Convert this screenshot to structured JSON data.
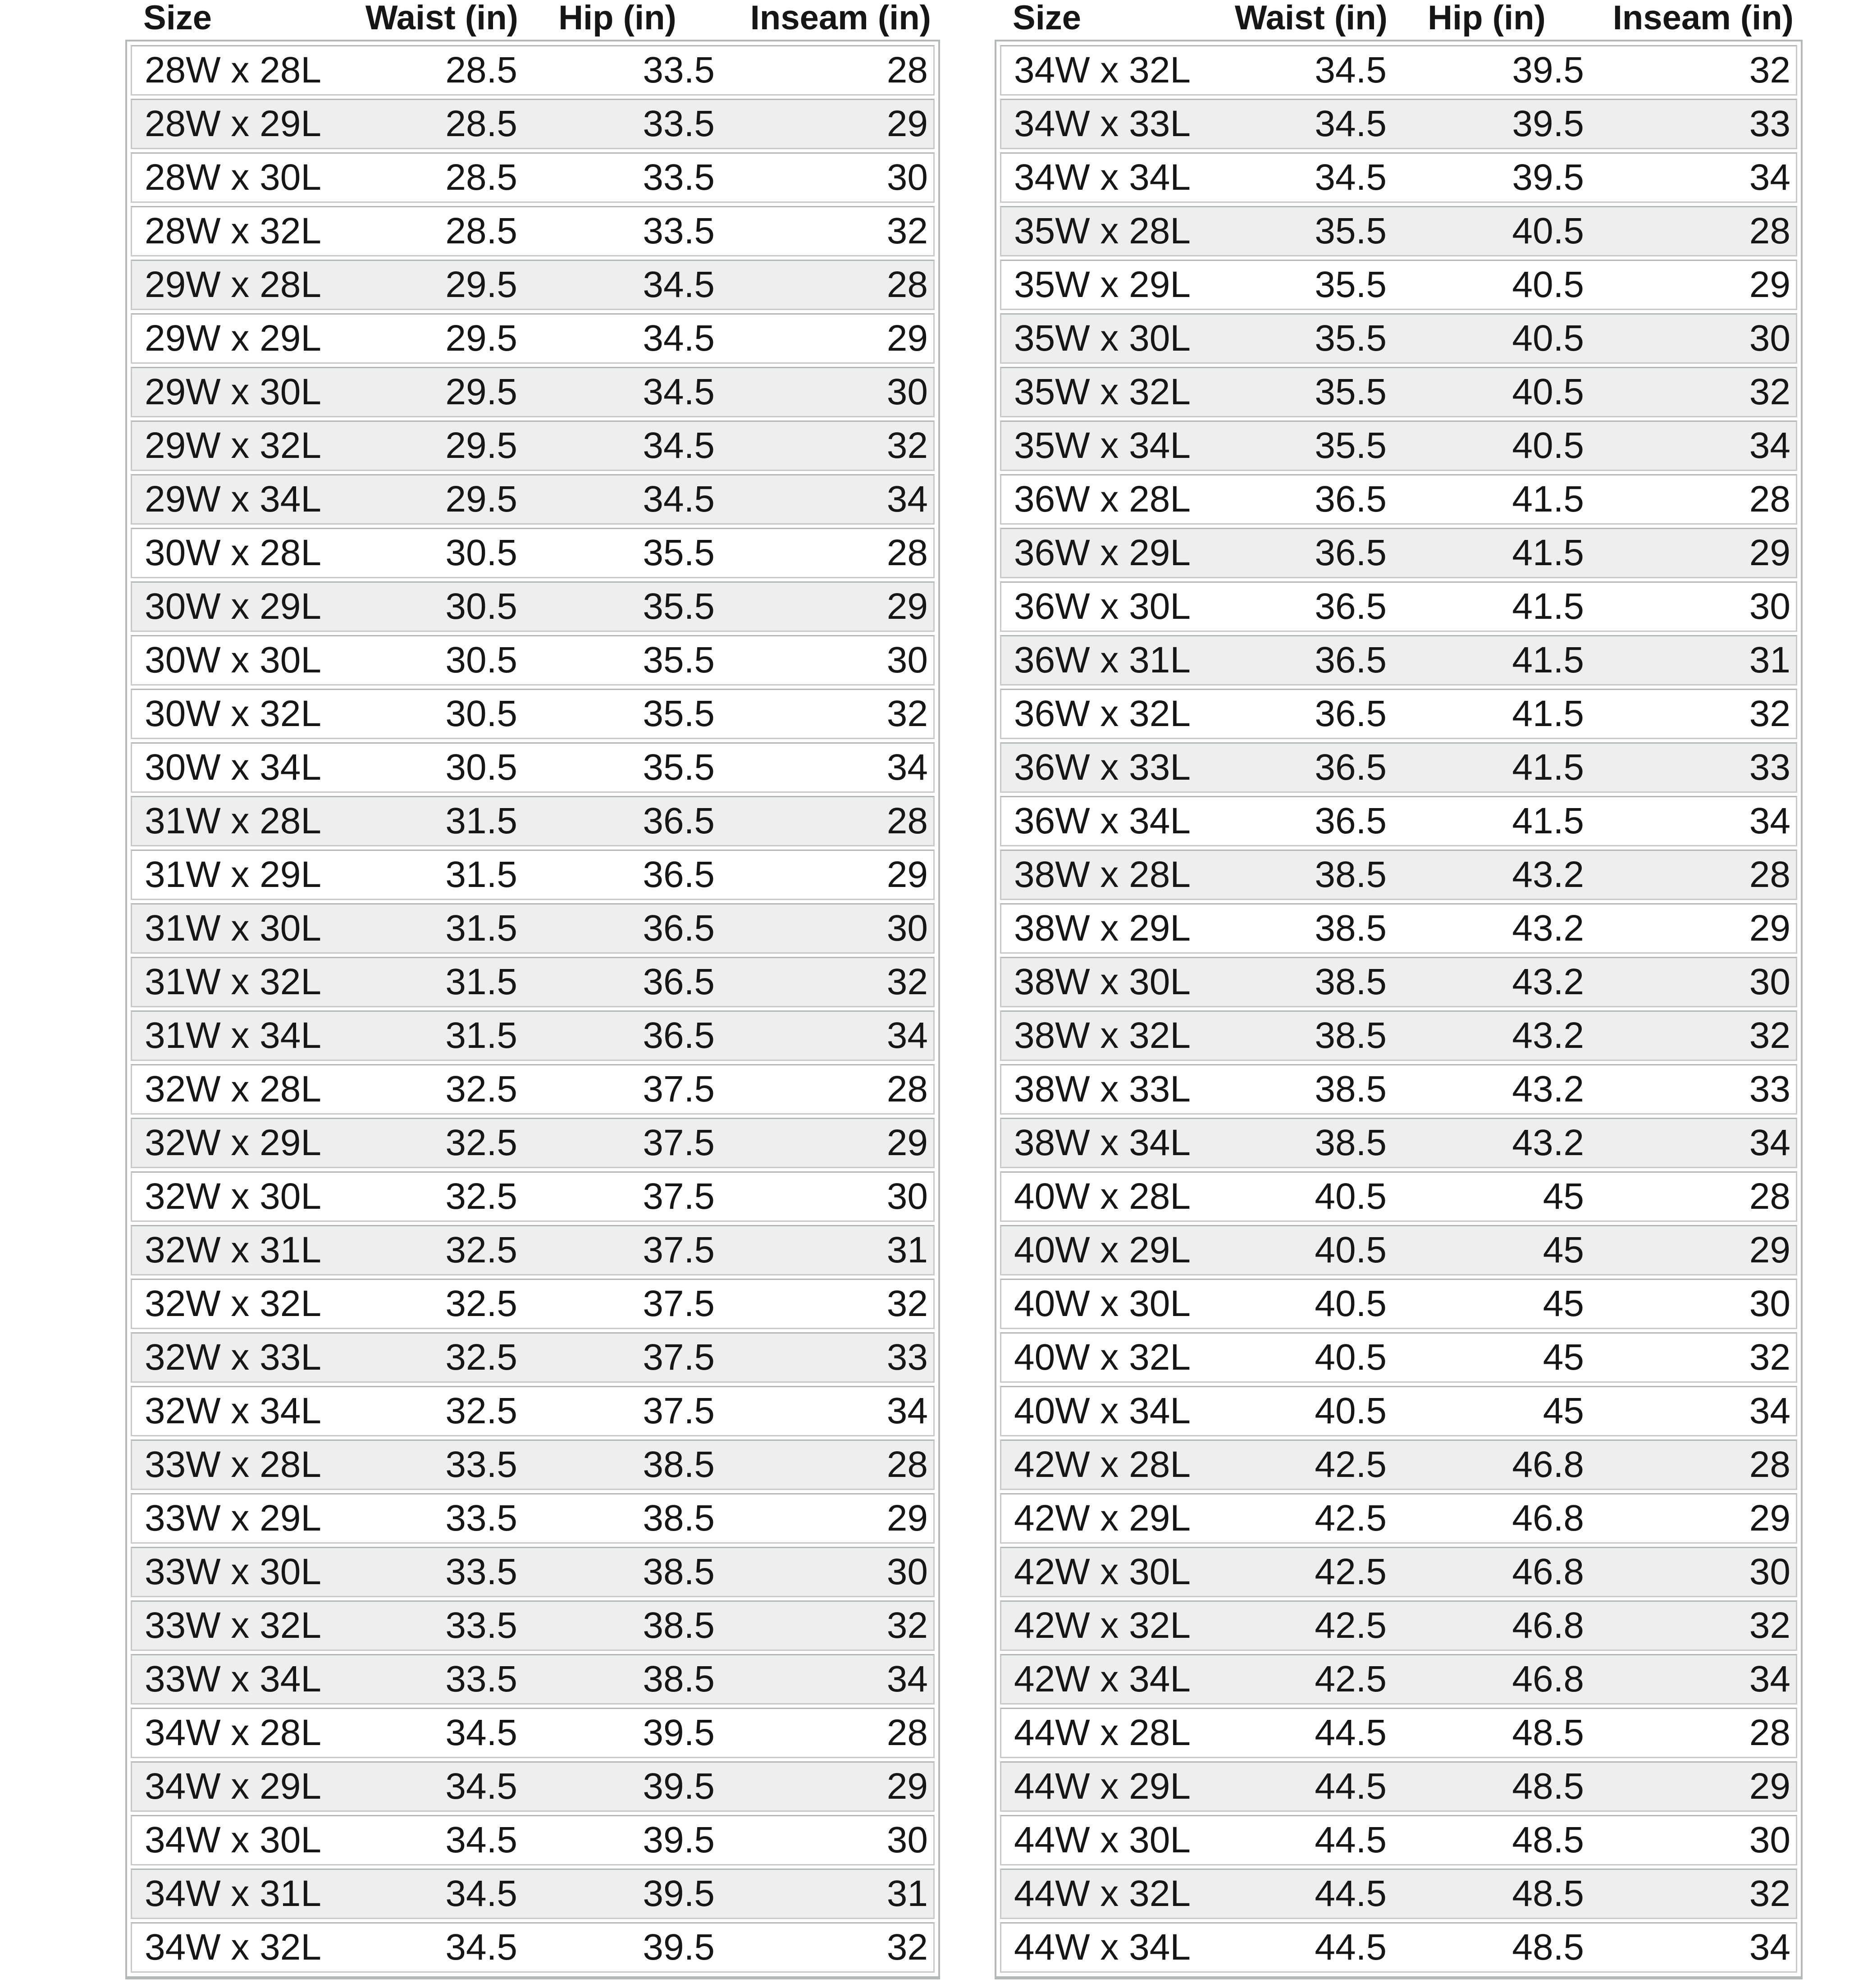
{
  "style": {
    "stripe_color": "#ecefec",
    "row_border_color": "#c7cac7",
    "row_border_top_color": "#b4b8b4",
    "table_border_color": "#b5b9b5",
    "text_color": "#161616",
    "background_color": "#ffffff"
  },
  "chart_data": [
    {
      "type": "table",
      "position": "left",
      "columns": [
        "Size",
        "Waist (in)",
        "Hip (in)",
        "Inseam (in)"
      ],
      "rows": [
        [
          "28W x 28L",
          "28.5",
          "33.5",
          "28"
        ],
        [
          "28W x 29L",
          "28.5",
          "33.5",
          "29"
        ],
        [
          "28W x 30L",
          "28.5",
          "33.5",
          "30"
        ],
        [
          "28W x 32L",
          "28.5",
          "33.5",
          "32"
        ],
        [
          "29W x 28L",
          "29.5",
          "34.5",
          "28"
        ],
        [
          "29W x 29L",
          "29.5",
          "34.5",
          "29"
        ],
        [
          "29W x 30L",
          "29.5",
          "34.5",
          "30"
        ],
        [
          "29W x 32L",
          "29.5",
          "34.5",
          "32"
        ],
        [
          "29W x 34L",
          "29.5",
          "34.5",
          "34"
        ],
        [
          "30W x 28L",
          "30.5",
          "35.5",
          "28"
        ],
        [
          "30W x 29L",
          "30.5",
          "35.5",
          "29"
        ],
        [
          "30W x 30L",
          "30.5",
          "35.5",
          "30"
        ],
        [
          "30W x 32L",
          "30.5",
          "35.5",
          "32"
        ],
        [
          "30W x 34L",
          "30.5",
          "35.5",
          "34"
        ],
        [
          "31W x 28L",
          "31.5",
          "36.5",
          "28"
        ],
        [
          "31W x 29L",
          "31.5",
          "36.5",
          "29"
        ],
        [
          "31W x 30L",
          "31.5",
          "36.5",
          "30"
        ],
        [
          "31W x 32L",
          "31.5",
          "36.5",
          "32"
        ],
        [
          "31W x 34L",
          "31.5",
          "36.5",
          "34"
        ],
        [
          "32W x 28L",
          "32.5",
          "37.5",
          "28"
        ],
        [
          "32W x 29L",
          "32.5",
          "37.5",
          "29"
        ],
        [
          "32W x 30L",
          "32.5",
          "37.5",
          "30"
        ],
        [
          "32W x 31L",
          "32.5",
          "37.5",
          "31"
        ],
        [
          "32W x 32L",
          "32.5",
          "37.5",
          "32"
        ],
        [
          "32W x 33L",
          "32.5",
          "37.5",
          "33"
        ],
        [
          "32W x 34L",
          "32.5",
          "37.5",
          "34"
        ],
        [
          "33W x 28L",
          "33.5",
          "38.5",
          "28"
        ],
        [
          "33W x 29L",
          "33.5",
          "38.5",
          "29"
        ],
        [
          "33W x 30L",
          "33.5",
          "38.5",
          "30"
        ],
        [
          "33W x 32L",
          "33.5",
          "38.5",
          "32"
        ],
        [
          "33W x 34L",
          "33.5",
          "38.5",
          "34"
        ],
        [
          "34W x 28L",
          "34.5",
          "39.5",
          "28"
        ],
        [
          "34W x 29L",
          "34.5",
          "39.5",
          "29"
        ],
        [
          "34W x 30L",
          "34.5",
          "39.5",
          "30"
        ],
        [
          "34W x 31L",
          "34.5",
          "39.5",
          "31"
        ],
        [
          "34W x 32L",
          "34.5",
          "39.5",
          "32"
        ]
      ],
      "row_shading": [
        false,
        true,
        false,
        false,
        true,
        false,
        true,
        true,
        true,
        false,
        true,
        false,
        false,
        false,
        true,
        false,
        true,
        true,
        true,
        false,
        true,
        false,
        true,
        false,
        true,
        false,
        true,
        false,
        true,
        true,
        true,
        false,
        true,
        false,
        true,
        false
      ]
    },
    {
      "type": "table",
      "position": "right",
      "columns": [
        "Size",
        "Waist (in)",
        "Hip (in)",
        "Inseam (in)"
      ],
      "rows": [
        [
          "34W x 32L",
          "34.5",
          "39.5",
          "32"
        ],
        [
          "34W x 33L",
          "34.5",
          "39.5",
          "33"
        ],
        [
          "34W x 34L",
          "34.5",
          "39.5",
          "34"
        ],
        [
          "35W x 28L",
          "35.5",
          "40.5",
          "28"
        ],
        [
          "35W x 29L",
          "35.5",
          "40.5",
          "29"
        ],
        [
          "35W x 30L",
          "35.5",
          "40.5",
          "30"
        ],
        [
          "35W x 32L",
          "35.5",
          "40.5",
          "32"
        ],
        [
          "35W x 34L",
          "35.5",
          "40.5",
          "34"
        ],
        [
          "36W x 28L",
          "36.5",
          "41.5",
          "28"
        ],
        [
          "36W x 29L",
          "36.5",
          "41.5",
          "29"
        ],
        [
          "36W x 30L",
          "36.5",
          "41.5",
          "30"
        ],
        [
          "36W x 31L",
          "36.5",
          "41.5",
          "31"
        ],
        [
          "36W x 32L",
          "36.5",
          "41.5",
          "32"
        ],
        [
          "36W x 33L",
          "36.5",
          "41.5",
          "33"
        ],
        [
          "36W x 34L",
          "36.5",
          "41.5",
          "34"
        ],
        [
          "38W x 28L",
          "38.5",
          "43.2",
          "28"
        ],
        [
          "38W x 29L",
          "38.5",
          "43.2",
          "29"
        ],
        [
          "38W x 30L",
          "38.5",
          "43.2",
          "30"
        ],
        [
          "38W x 32L",
          "38.5",
          "43.2",
          "32"
        ],
        [
          "38W x 33L",
          "38.5",
          "43.2",
          "33"
        ],
        [
          "38W x 34L",
          "38.5",
          "43.2",
          "34"
        ],
        [
          "40W x 28L",
          "40.5",
          "45",
          "28"
        ],
        [
          "40W x 29L",
          "40.5",
          "45",
          "29"
        ],
        [
          "40W x 30L",
          "40.5",
          "45",
          "30"
        ],
        [
          "40W x 32L",
          "40.5",
          "45",
          "32"
        ],
        [
          "40W x 34L",
          "40.5",
          "45",
          "34"
        ],
        [
          "42W x 28L",
          "42.5",
          "46.8",
          "28"
        ],
        [
          "42W x 29L",
          "42.5",
          "46.8",
          "29"
        ],
        [
          "42W x 30L",
          "42.5",
          "46.8",
          "30"
        ],
        [
          "42W x 32L",
          "42.5",
          "46.8",
          "32"
        ],
        [
          "42W x 34L",
          "42.5",
          "46.8",
          "34"
        ],
        [
          "44W x 28L",
          "44.5",
          "48.5",
          "28"
        ],
        [
          "44W x 29L",
          "44.5",
          "48.5",
          "29"
        ],
        [
          "44W x 30L",
          "44.5",
          "48.5",
          "30"
        ],
        [
          "44W x 32L",
          "44.5",
          "48.5",
          "32"
        ],
        [
          "44W x 34L",
          "44.5",
          "48.5",
          "34"
        ]
      ],
      "row_shading": [
        false,
        true,
        false,
        true,
        false,
        true,
        true,
        true,
        false,
        true,
        false,
        true,
        false,
        true,
        false,
        true,
        false,
        true,
        true,
        false,
        true,
        false,
        true,
        false,
        false,
        false,
        true,
        false,
        true,
        true,
        true,
        false,
        true,
        false,
        true,
        false
      ]
    }
  ]
}
